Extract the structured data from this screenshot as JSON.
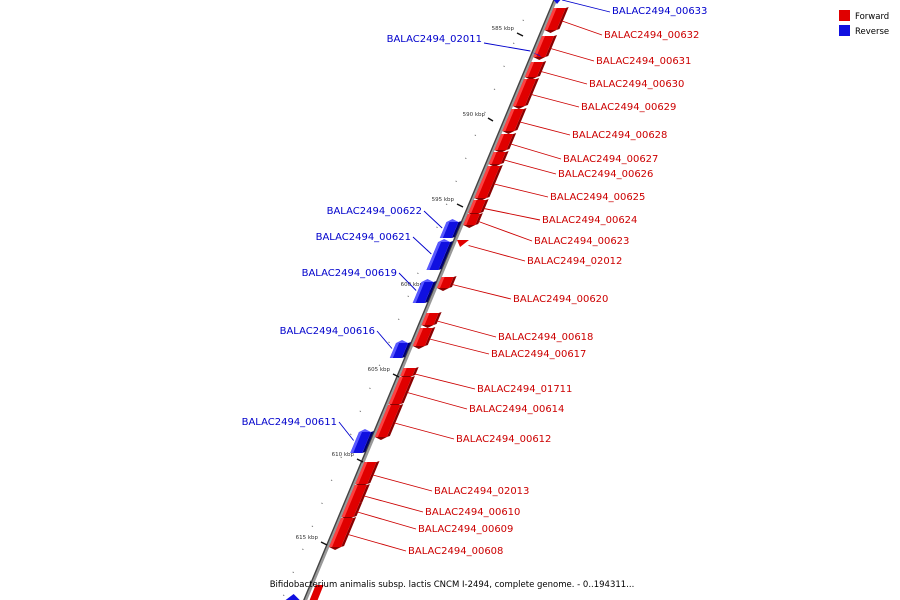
{
  "caption": "Bifidobacterium animalis subsp. lactis CNCM I-2494, complete genome. - 0..194311...",
  "legend": {
    "forward_label": "Forward",
    "reverse_label": "Reverse",
    "forward_color": "#e00000",
    "reverse_color": "#1010e0"
  },
  "colors": {
    "forward_dark": "#8a0000",
    "forward_light": "#ff4040",
    "reverse_dark": "#00006e",
    "reverse_light": "#5a5aff",
    "backbone": "#999999",
    "forward_line": "#cc0000",
    "reverse_line": "#0000cc"
  },
  "kbp_ticks": [
    "585 kbp",
    "590 kbp",
    "595 kbp",
    "600 kbp",
    "605 kbp",
    "610 kbp",
    "615 kbp"
  ],
  "forward_genes": [
    {
      "label": "BALAC2494_00632"
    },
    {
      "label": "BALAC2494_00631"
    },
    {
      "label": "BALAC2494_00630"
    },
    {
      "label": "BALAC2494_00629"
    },
    {
      "label": "BALAC2494_00628"
    },
    {
      "label": "BALAC2494_00627"
    },
    {
      "label": "BALAC2494_00626"
    },
    {
      "label": "BALAC2494_00625"
    },
    {
      "label": "BALAC2494_00624"
    },
    {
      "label": "BALAC2494_00623"
    },
    {
      "label": "BALAC2494_02012"
    },
    {
      "label": "BALAC2494_00620"
    },
    {
      "label": "BALAC2494_00618"
    },
    {
      "label": "BALAC2494_00617"
    },
    {
      "label": "BALAC2494_01711"
    },
    {
      "label": "BALAC2494_00614"
    },
    {
      "label": "BALAC2494_00612"
    },
    {
      "label": "BALAC2494_02013"
    },
    {
      "label": "BALAC2494_00610"
    },
    {
      "label": "BALAC2494_00609"
    },
    {
      "label": "BALAC2494_00608"
    }
  ],
  "reverse_genes": [
    {
      "label": "BALAC2494_00633"
    },
    {
      "label": "BALAC2494_02011"
    },
    {
      "label": "BALAC2494_00622"
    },
    {
      "label": "BALAC2494_00621"
    },
    {
      "label": "BALAC2494_00619"
    },
    {
      "label": "BALAC2494_00616"
    },
    {
      "label": "BALAC2494_00611"
    }
  ]
}
